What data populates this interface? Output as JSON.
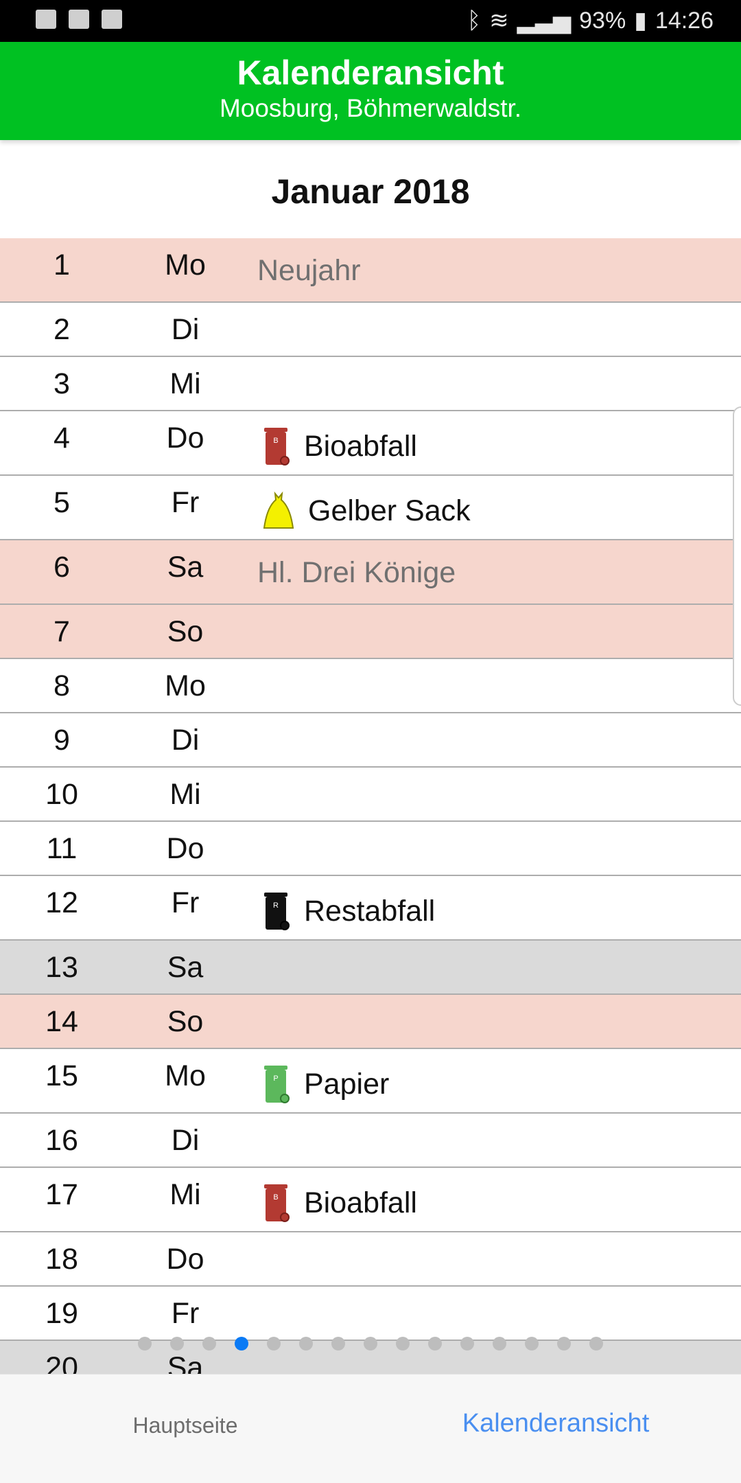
{
  "status_bar": {
    "battery": "93%",
    "time": "14:26",
    "icons": [
      "gallery-icon",
      "email-icon",
      "task-icon",
      "bluetooth-icon",
      "wifi-icon",
      "signal-icon",
      "battery-charging-icon"
    ]
  },
  "header": {
    "title": "Kalenderansicht",
    "subtitle": "Moosburg, Böhmerwaldstr.",
    "color": "#00c122"
  },
  "month": "Januar 2018",
  "colors": {
    "holiday": "#f6d6cd",
    "saturday": "#dadada",
    "active_dot": "#0a7af5",
    "active_tab": "#4a8ff0"
  },
  "days": [
    {
      "day": "1",
      "weekday": "Mo",
      "type": "holiday",
      "event": "Neujahr",
      "event_type": "holiday"
    },
    {
      "day": "2",
      "weekday": "Di"
    },
    {
      "day": "3",
      "weekday": "Mi"
    },
    {
      "day": "4",
      "weekday": "Do",
      "event": "Bioabfall",
      "icon": "bio",
      "icon_letter": "B"
    },
    {
      "day": "5",
      "weekday": "Fr",
      "event": "Gelber Sack",
      "icon": "sack"
    },
    {
      "day": "6",
      "weekday": "Sa",
      "type": "holiday",
      "event": "Hl. Drei Könige",
      "event_type": "holiday"
    },
    {
      "day": "7",
      "weekday": "So",
      "type": "sunday"
    },
    {
      "day": "8",
      "weekday": "Mo"
    },
    {
      "day": "9",
      "weekday": "Di"
    },
    {
      "day": "10",
      "weekday": "Mi"
    },
    {
      "day": "11",
      "weekday": "Do"
    },
    {
      "day": "12",
      "weekday": "Fr",
      "event": "Restabfall",
      "icon": "rest",
      "icon_letter": "R"
    },
    {
      "day": "13",
      "weekday": "Sa",
      "type": "saturday"
    },
    {
      "day": "14",
      "weekday": "So",
      "type": "sunday"
    },
    {
      "day": "15",
      "weekday": "Mo",
      "event": "Papier",
      "icon": "paper",
      "icon_letter": "P"
    },
    {
      "day": "16",
      "weekday": "Di"
    },
    {
      "day": "17",
      "weekday": "Mi",
      "event": "Bioabfall",
      "icon": "bio",
      "icon_letter": "B"
    },
    {
      "day": "18",
      "weekday": "Do"
    },
    {
      "day": "19",
      "weekday": "Fr"
    },
    {
      "day": "20",
      "weekday": "Sa",
      "type": "saturday"
    }
  ],
  "pager": {
    "count": 15,
    "active_index": 3
  },
  "bottom_nav": {
    "items": [
      {
        "label": "Hauptseite",
        "active": false
      },
      {
        "label": "Kalenderansicht",
        "active": true
      }
    ]
  }
}
